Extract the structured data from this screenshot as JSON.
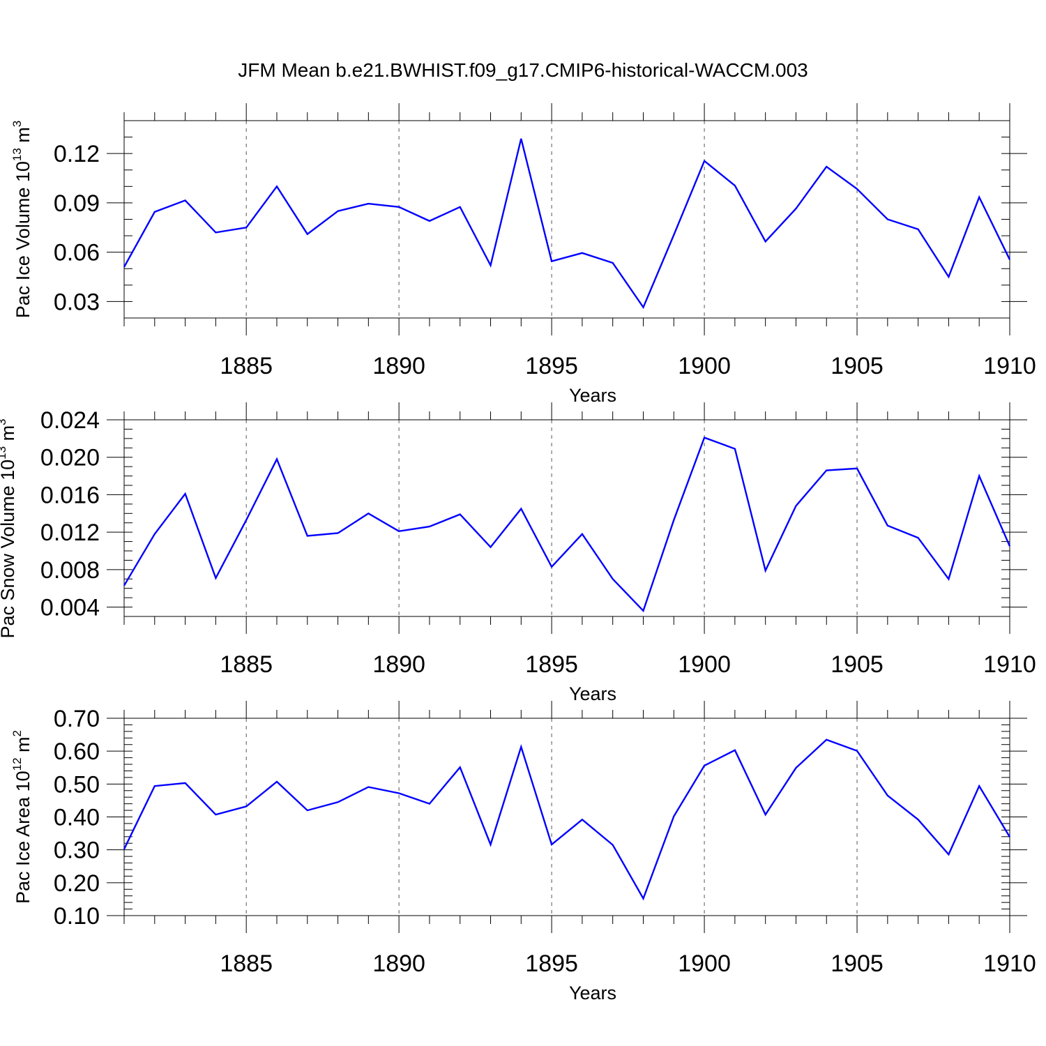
{
  "title": "JFM Mean b.e21.BWHIST.f09_g17.CMIP6-historical-WACCM.003",
  "colors": {
    "series": "#0000ff",
    "axes": "#000000",
    "grid": "#555555"
  },
  "chart_data": [
    {
      "type": "line",
      "ylabel": {
        "text": "Pac Ice Volume 10",
        "exp": "13",
        "unit": " m",
        "unit_exp": "3"
      },
      "xlabel": "Years",
      "xlim": [
        1881,
        1910
      ],
      "ylim": [
        0.02,
        0.14
      ],
      "yticks": [
        0.03,
        0.06,
        0.09,
        0.12
      ],
      "ytick_labels": [
        "0.03",
        "0.06",
        "0.09",
        "0.12"
      ],
      "yminor": 0.01,
      "xticks": [
        1885,
        1890,
        1895,
        1900,
        1905,
        1910
      ],
      "grid": "x-dashed",
      "x": [
        1881,
        1882,
        1883,
        1884,
        1885,
        1886,
        1887,
        1888,
        1889,
        1890,
        1891,
        1892,
        1893,
        1894,
        1895,
        1896,
        1897,
        1898,
        1899,
        1900,
        1901,
        1902,
        1903,
        1904,
        1905,
        1906,
        1907,
        1908,
        1909,
        1910
      ],
      "values": [
        0.051,
        0.0845,
        0.0915,
        0.072,
        0.075,
        0.1,
        0.071,
        0.085,
        0.0895,
        0.0875,
        0.079,
        0.0875,
        0.052,
        0.129,
        0.0545,
        0.0595,
        0.0535,
        0.0265,
        0.0705,
        0.1155,
        0.1005,
        0.0665,
        0.0865,
        0.112,
        0.0985,
        0.08,
        0.074,
        0.045,
        0.0935,
        0.0555
      ]
    },
    {
      "type": "line",
      "ylabel": {
        "text": "Pac Snow Volume 10",
        "exp": "13",
        "unit": " m",
        "unit_exp": "3"
      },
      "xlabel": "Years",
      "xlim": [
        1881,
        1910
      ],
      "ylim": [
        0.003,
        0.024
      ],
      "yticks": [
        0.004,
        0.008,
        0.012,
        0.016,
        0.02,
        0.024
      ],
      "ytick_labels": [
        "0.004",
        "0.008",
        "0.012",
        "0.016",
        "0.020",
        "0.024"
      ],
      "yminor": 0.001,
      "xticks": [
        1885,
        1890,
        1895,
        1900,
        1905,
        1910
      ],
      "grid": "x-dashed",
      "x": [
        1881,
        1882,
        1883,
        1884,
        1885,
        1886,
        1887,
        1888,
        1889,
        1890,
        1891,
        1892,
        1893,
        1894,
        1895,
        1896,
        1897,
        1898,
        1899,
        1900,
        1901,
        1902,
        1903,
        1904,
        1905,
        1906,
        1907,
        1908,
        1909,
        1910
      ],
      "values": [
        0.0063,
        0.0118,
        0.0161,
        0.0071,
        0.0133,
        0.0198,
        0.0116,
        0.0119,
        0.014,
        0.0121,
        0.0126,
        0.0139,
        0.0104,
        0.0145,
        0.0083,
        0.0118,
        0.007,
        0.0036,
        0.0133,
        0.0221,
        0.0209,
        0.0079,
        0.0148,
        0.0186,
        0.0188,
        0.0127,
        0.0114,
        0.007,
        0.018,
        0.0105
      ]
    },
    {
      "type": "line",
      "ylabel": {
        "text": "Pac Ice Area 10",
        "exp": "12",
        "unit": " m",
        "unit_exp": "2"
      },
      "xlabel": "Years",
      "xlim": [
        1881,
        1910
      ],
      "ylim": [
        0.1,
        0.7
      ],
      "yticks": [
        0.1,
        0.2,
        0.3,
        0.4,
        0.5,
        0.6,
        0.7
      ],
      "ytick_labels": [
        "0.10",
        "0.20",
        "0.30",
        "0.40",
        "0.50",
        "0.60",
        "0.70"
      ],
      "yminor": 0.02,
      "xticks": [
        1885,
        1890,
        1895,
        1900,
        1905,
        1910
      ],
      "grid": "x-dashed",
      "x": [
        1881,
        1882,
        1883,
        1884,
        1885,
        1886,
        1887,
        1888,
        1889,
        1890,
        1891,
        1892,
        1893,
        1894,
        1895,
        1896,
        1897,
        1898,
        1899,
        1900,
        1901,
        1902,
        1903,
        1904,
        1905,
        1906,
        1907,
        1908,
        1909,
        1910
      ],
      "values": [
        0.302,
        0.494,
        0.503,
        0.407,
        0.432,
        0.507,
        0.42,
        0.445,
        0.491,
        0.472,
        0.44,
        0.551,
        0.316,
        0.613,
        0.316,
        0.392,
        0.315,
        0.152,
        0.402,
        0.556,
        0.603,
        0.407,
        0.549,
        0.635,
        0.601,
        0.465,
        0.392,
        0.286,
        0.494,
        0.339
      ]
    }
  ]
}
